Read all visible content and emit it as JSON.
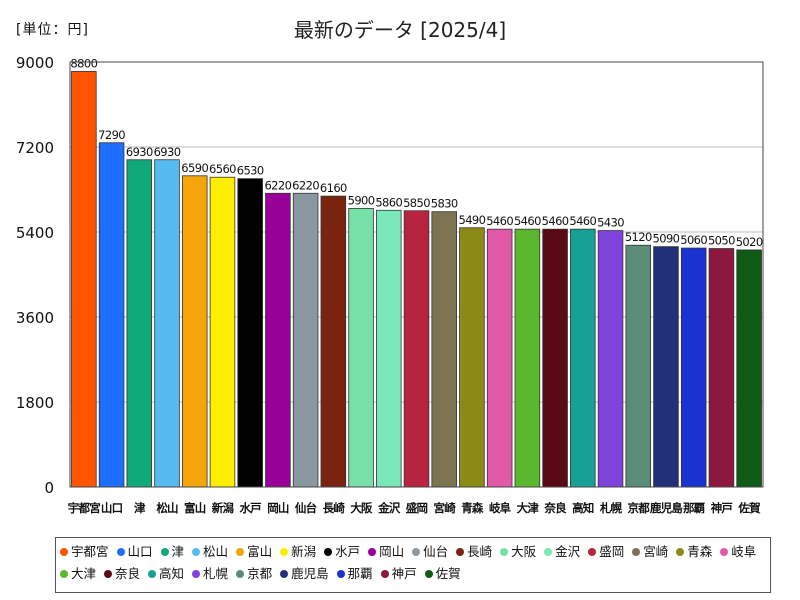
{
  "header": {
    "unit_label": "[単位：円]",
    "title": "最新のデータ [2025/4]"
  },
  "chart_data": {
    "type": "bar",
    "title": "最新のデータ [2025/4]",
    "ylabel": "[単位：円]",
    "xlabel": "",
    "ylim": [
      0,
      9000
    ],
    "yticks": [
      0,
      1800,
      3600,
      5400,
      7200,
      9000
    ],
    "grid": true,
    "legend_position": "bottom",
    "categories": [
      "宇都宮",
      "山口",
      "津",
      "松山",
      "富山",
      "新潟",
      "水戸",
      "岡山",
      "仙台",
      "長崎",
      "大阪",
      "金沢",
      "盛岡",
      "宮崎",
      "青森",
      "岐阜",
      "大津",
      "奈良",
      "高知",
      "札幌",
      "京都",
      "鹿児島",
      "那覇",
      "神戸",
      "佐賀"
    ],
    "values": [
      8800,
      7290,
      6930,
      6930,
      6590,
      6560,
      6530,
      6220,
      6220,
      6160,
      5900,
      5860,
      5850,
      5830,
      5490,
      5460,
      5460,
      5460,
      5460,
      5430,
      5120,
      5090,
      5060,
      5050,
      5020
    ],
    "colors": [
      "#ff5500",
      "#1e6fff",
      "#0fa97a",
      "#55bbf0",
      "#f5a40a",
      "#ffee00",
      "#000000",
      "#990099",
      "#8a96a0",
      "#7a2410",
      "#77e0a8",
      "#7ae8b8",
      "#b8233f",
      "#7a7450",
      "#8a8a15",
      "#e058a8",
      "#5ab82f",
      "#5a0a14",
      "#17a095",
      "#7f42dd",
      "#5a8c78",
      "#22307a",
      "#1a33d0",
      "#8c1840",
      "#0f5a14"
    ]
  }
}
